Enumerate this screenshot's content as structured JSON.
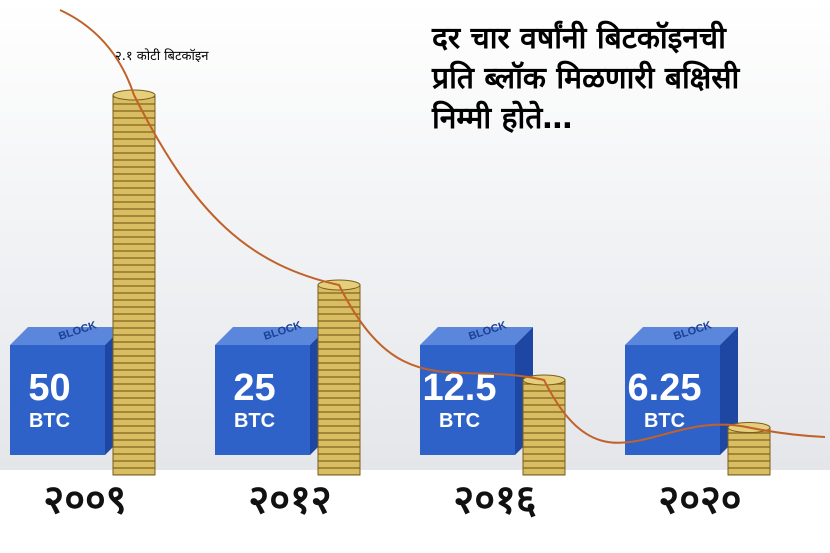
{
  "chart_data": {
    "type": "bar",
    "title_lines": [
      "दर चार वर्षांनी बिटकॉइनची",
      "प्रति ब्लॉक मिळणारी बक्षिसी",
      "निम्मी होते…"
    ],
    "annotation": "२.१ कोटी बिटकॉइन",
    "block_label": "BLOCK",
    "unit_label": "BTC",
    "categories": [
      "२००९",
      "२०१२",
      "२०१६",
      "२०२०"
    ],
    "values": [
      50,
      25,
      12.5,
      6.25
    ],
    "color": "#c9a94a",
    "block_color": "#2f62c8",
    "curve_color": "#c0622a"
  }
}
